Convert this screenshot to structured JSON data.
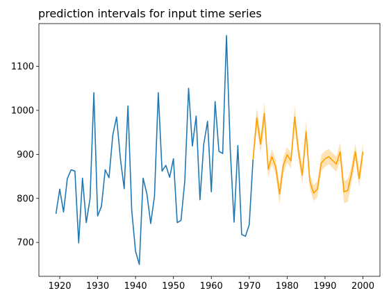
{
  "chart_data": {
    "type": "line",
    "title": "prediction intervals for input time series",
    "xlabel": "",
    "ylabel": "",
    "xlim": [
      1914.5,
      2004.5
    ],
    "ylim": [
      623,
      1197
    ],
    "x_ticks": [
      1920,
      1930,
      1940,
      1950,
      1960,
      1970,
      1980,
      1990,
      2000
    ],
    "y_ticks": [
      700,
      800,
      900,
      1000,
      1100
    ],
    "grid": false,
    "colors": {
      "history": "#1f77b4",
      "forecast": "#ff9f00",
      "interval": "#ffe2b3"
    },
    "series": [
      {
        "x": [
          1919,
          1920,
          1921,
          1922,
          1923,
          1924,
          1925,
          1926,
          1927,
          1928,
          1929,
          1930,
          1931,
          1932,
          1933,
          1934,
          1935,
          1936,
          1937,
          1938,
          1939,
          1940,
          1941,
          1942,
          1943,
          1944,
          1945,
          1946,
          1947,
          1948,
          1949,
          1950,
          1951,
          1952,
          1953,
          1954,
          1955,
          1956,
          1957,
          1958,
          1959,
          1960,
          1961,
          1962,
          1963,
          1964,
          1965,
          1966,
          1967,
          1968,
          1969,
          1970,
          1971
        ],
        "values": [
          765,
          821,
          769,
          845,
          865,
          862,
          699,
          846,
          745,
          800,
          1040,
          760,
          782,
          865,
          847,
          944,
          985,
          891,
          822,
          1010,
          772,
          680,
          650,
          846,
          810,
          743,
          805,
          1040,
          862,
          875,
          848,
          890,
          745,
          750,
          840,
          1050,
          919,
          987,
          797,
          923,
          975,
          815,
          1020,
          907,
          902,
          1170,
          910,
          746,
          920,
          718,
          714,
          740,
          888
        ]
      },
      {
        "x": [
          1971,
          1972,
          1973,
          1974,
          1975,
          1976,
          1977,
          1978,
          1979,
          1980,
          1981,
          1982,
          1983,
          1984,
          1985,
          1986,
          1987,
          1988,
          1989,
          1990,
          1991,
          1992,
          1993,
          1994,
          1995,
          1996,
          1997,
          1998,
          1999,
          2000
        ],
        "values": [
          888,
          983,
          923,
          993,
          866,
          895,
          871,
          810,
          875,
          899,
          885,
          985,
          906,
          853,
          952,
          838,
          812,
          821,
          880,
          890,
          895,
          886,
          878,
          906,
          815,
          818,
          856,
          906,
          845,
          906
        ],
        "lower": [
          868,
          960,
          903,
          968,
          848,
          878,
          854,
          787,
          857,
          881,
          868,
          960,
          888,
          833,
          928,
          821,
          794,
          803,
          862,
          872,
          878,
          869,
          861,
          885,
          790,
          792,
          837,
          887,
          826,
          885
        ],
        "upper": [
          908,
          1006,
          943,
          1018,
          884,
          912,
          888,
          833,
          893,
          917,
          902,
          1010,
          924,
          873,
          976,
          855,
          830,
          839,
          898,
          908,
          912,
          903,
          895,
          927,
          840,
          844,
          875,
          925,
          864,
          927
        ]
      }
    ]
  }
}
